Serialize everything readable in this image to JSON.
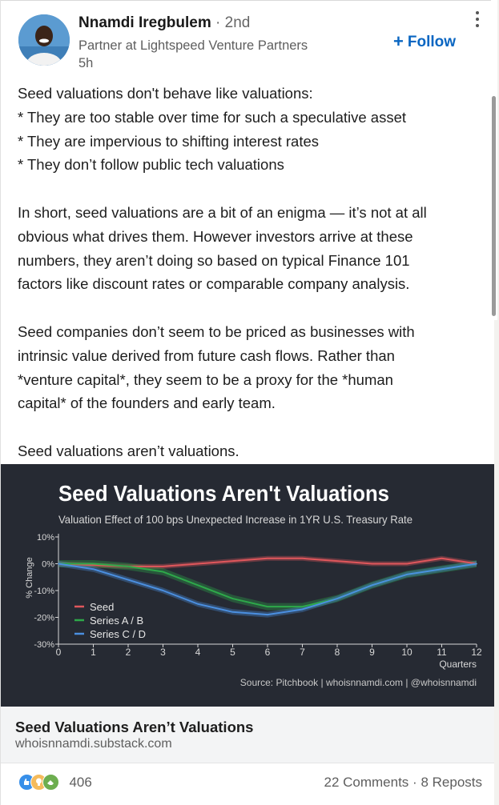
{
  "post": {
    "author": {
      "name": "Nnamdi Iregbulem",
      "degree": "· 2nd",
      "headline": "Partner at Lightspeed Venture Partners",
      "time": "5h"
    },
    "follow_label": "Follow",
    "body": [
      "Seed valuations don't behave like valuations:",
      "* They are too stable over time for such a speculative asset",
      "* They are impervious to shifting interest rates",
      "* They don’t follow public tech valuations",
      "",
      "In short, seed valuations are a bit of an enigma — it’s not at all",
      "obvious what drives them. However investors arrive at these",
      "numbers, they aren’t doing so based on typical Finance 101",
      "factors like discount rates or comparable company analysis.",
      "",
      "Seed companies don’t seem to be priced as businesses with",
      "intrinsic value derived from future cash flows. Rather than",
      "*venture capital*, they seem to be a proxy for the *human",
      "capital* of the founders and early team.",
      "",
      "Seed valuations aren’t valuations."
    ]
  },
  "link_preview": {
    "title": "Seed Valuations Aren’t Valuations",
    "domain": "whoisnnamdi.substack.com"
  },
  "social": {
    "reaction_count": "406",
    "comments": "22 Comments",
    "separator": "·",
    "reposts": "8 Reposts",
    "reaction_icons": [
      "like-icon",
      "insightful-icon",
      "support-icon"
    ]
  },
  "chart_data": {
    "type": "line",
    "title": "Seed Valuations Aren't Valuations",
    "subtitle": "Valuation Effect of 100 bps Unexpected Increase in 1YR U.S. Treasury Rate",
    "ylabel": "% Change",
    "xlabel": "Quarters",
    "source": "Source: Pitchbook | whoisnnamdi.com | @whoisnnamdi",
    "x": [
      0,
      1,
      2,
      3,
      4,
      5,
      6,
      7,
      8,
      9,
      10,
      11,
      12
    ],
    "x_ticks": [
      "0",
      "1",
      "2",
      "3",
      "4",
      "5",
      "6",
      "7",
      "8",
      "9",
      "10",
      "11",
      "12"
    ],
    "y_ticks": [
      "10%",
      "0%",
      "-10%",
      "-20%",
      "-30%"
    ],
    "y_tick_values": [
      10,
      0,
      -10,
      -20,
      -30
    ],
    "ylim": [
      -30,
      10
    ],
    "xlim": [
      0,
      12
    ],
    "legend_position": "lower-left",
    "grid": false,
    "colors": {
      "background": "#262a33",
      "seed": "#e0575c",
      "series_ab": "#2ea84a",
      "series_cd": "#4b8fe0"
    },
    "series": [
      {
        "name": "Seed",
        "color": "#e0575c",
        "values": [
          0,
          -0.5,
          -1,
          -1,
          0,
          1,
          2,
          2,
          1,
          0,
          0,
          2,
          0
        ]
      },
      {
        "name": "Series A / B",
        "color": "#2ea84a",
        "values": [
          0,
          0,
          -1,
          -3,
          -8,
          -13,
          -16,
          -16,
          -13,
          -8,
          -4,
          -2,
          0
        ]
      },
      {
        "name": "Series C / D",
        "color": "#4b8fe0",
        "values": [
          0,
          -2,
          -6,
          -10,
          -15,
          -18,
          -19,
          -17,
          -13,
          -8,
          -4,
          -2,
          0
        ]
      }
    ]
  }
}
